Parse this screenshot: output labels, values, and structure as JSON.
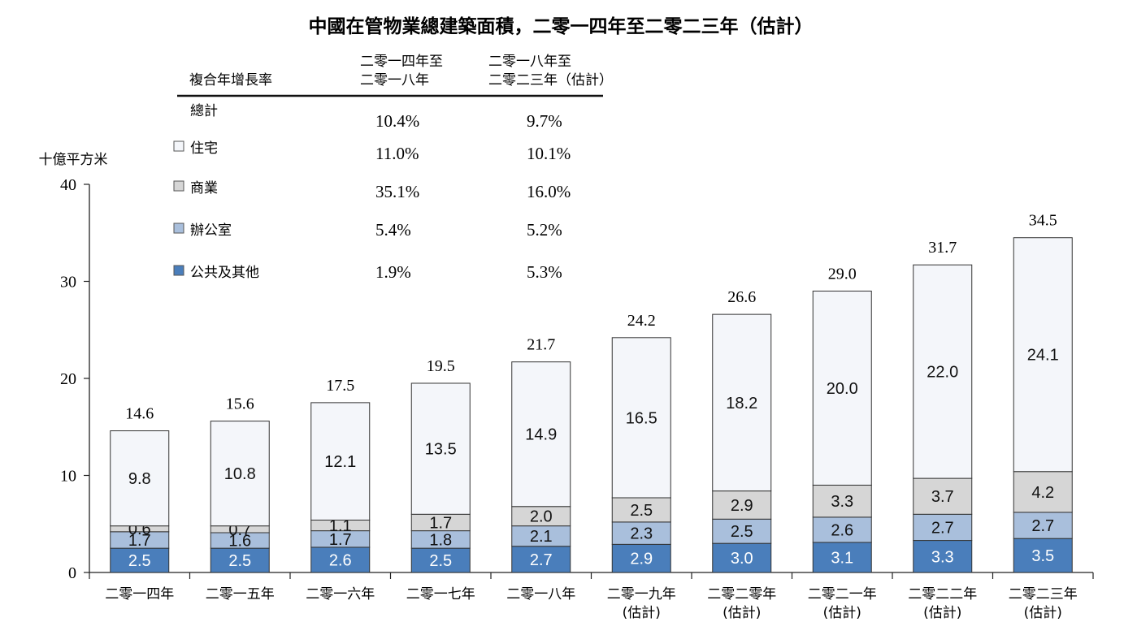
{
  "chart_data": {
    "type": "bar",
    "stacked": true,
    "title": "中國在管物業總建築面積，二零一四年至二零二三年（估計）",
    "ylabel": "十億平方米",
    "ylim": [
      0,
      40
    ],
    "yticks": [
      "0",
      "10",
      "20",
      "30",
      "40"
    ],
    "categories": [
      [
        "二零一四年",
        ""
      ],
      [
        "二零一五年",
        ""
      ],
      [
        "二零一六年",
        ""
      ],
      [
        "二零一七年",
        ""
      ],
      [
        "二零一八年",
        ""
      ],
      [
        "二零一九年",
        "(估計)"
      ],
      [
        "二零二零年",
        "(估計)"
      ],
      [
        "二零二一年",
        "(估計)"
      ],
      [
        "二零二二年",
        "(估計)"
      ],
      [
        "二零二三年",
        "(估計)"
      ]
    ],
    "series": [
      {
        "name": "公共及其他",
        "color": "#4a7ebb",
        "values": [
          2.5,
          2.5,
          2.6,
          2.5,
          2.7,
          2.9,
          3.0,
          3.1,
          3.3,
          3.5
        ],
        "labels": [
          "2.5",
          "2.5",
          "2.6",
          "2.5",
          "2.7",
          "2.9",
          "3.0",
          "3.1",
          "3.3",
          "3.5"
        ]
      },
      {
        "name": "辦公室",
        "color": "#a9bfdc",
        "values": [
          1.7,
          1.6,
          1.7,
          1.8,
          2.1,
          2.3,
          2.5,
          2.6,
          2.7,
          2.7
        ],
        "labels": [
          "1.7",
          "1.6",
          "1.7",
          "1.8",
          "2.1",
          "2.3",
          "2.5",
          "2.6",
          "2.7",
          "2.7"
        ]
      },
      {
        "name": "商業",
        "color": "#d6d6d6",
        "values": [
          0.6,
          0.7,
          1.1,
          1.7,
          2.0,
          2.5,
          2.9,
          3.3,
          3.7,
          4.2
        ],
        "labels": [
          "0.6",
          "0.7",
          "1.1",
          "1.7",
          "2.0",
          "2.5",
          "2.9",
          "3.3",
          "3.7",
          "4.2"
        ]
      },
      {
        "name": "住宅",
        "color": "#f4f6fa",
        "values": [
          9.8,
          10.8,
          12.1,
          13.5,
          14.9,
          16.5,
          18.2,
          20.0,
          22.0,
          24.1
        ],
        "labels": [
          "9.8",
          "10.8",
          "12.1",
          "13.5",
          "14.9",
          "16.5",
          "18.2",
          "20.0",
          "22.0",
          "24.1"
        ]
      }
    ],
    "totals": [
      14.6,
      15.6,
      17.5,
      19.5,
      21.7,
      24.2,
      26.6,
      29.0,
      31.7,
      34.5
    ],
    "total_labels": [
      "14.6",
      "15.6",
      "17.5",
      "19.5",
      "21.7",
      "24.2",
      "26.6",
      "29.0",
      "31.7",
      "34.5"
    ],
    "cagr_table": {
      "header_label": "複合年增長率",
      "col1_header": [
        "二零一四年至",
        "二零一八年"
      ],
      "col2_header": [
        "二零一八年至",
        "二零二三年（估計）"
      ],
      "rows": [
        {
          "label": "總計",
          "swatch": null,
          "v1": "10.4%",
          "v2": "9.7%"
        },
        {
          "label": "住宅",
          "swatch": "#f4f6fa",
          "v1": "11.0%",
          "v2": "10.1%"
        },
        {
          "label": "商業",
          "swatch": "#d6d6d6",
          "v1": "35.1%",
          "v2": "16.0%"
        },
        {
          "label": "辦公室",
          "swatch": "#a9bfdc",
          "v1": "5.4%",
          "v2": "5.2%"
        },
        {
          "label": "公共及其他",
          "swatch": "#4a7ebb",
          "v1": "1.9%",
          "v2": "5.3%"
        }
      ]
    },
    "grid": false,
    "legend_position": "top-left (inside CAGR table)"
  }
}
